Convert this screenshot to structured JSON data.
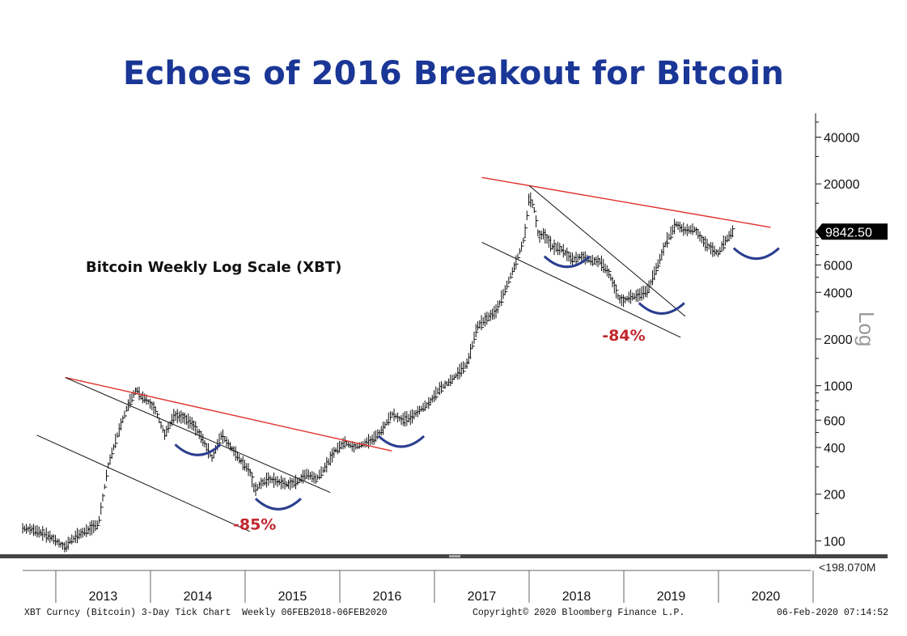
{
  "title": "Echoes of 2016 Breakout for Bitcoin",
  "subtitle": "Bitcoin Weekly Log Scale (XBT)",
  "axis_side_label": "Log",
  "last_price_label": "9842.50",
  "volume_label": "198.070M",
  "footer": {
    "left": "XBT Curncy (Bitcoin) 3-Day Tick Chart  Weekly 06FEB2018-06FEB2020",
    "center": "Copyright© 2020 Bloomberg Finance L.P.",
    "right": "06-Feb-2020 07:14:52"
  },
  "colors": {
    "title": "#1a3696",
    "resistance_line": "#e0302a",
    "channel_line": "#111111",
    "arc": "#2a3e8f",
    "annotation": "#c1272d"
  },
  "annotations": [
    {
      "text": "-85%",
      "x": 2015.05,
      "y": 118
    },
    {
      "text": "-84%",
      "x": 2018.95,
      "y": 1950
    }
  ],
  "chart_data": {
    "type": "line",
    "scale": "log",
    "title": "Echoes of 2016 Breakout for Bitcoin",
    "subtitle": "Bitcoin Weekly Log Scale (XBT)",
    "xlabel": "",
    "ylabel": "Log",
    "xlim": [
      2012.6,
      2020.95
    ],
    "ylim": [
      82,
      57000
    ],
    "x_tick_labels": [
      "2013",
      "2014",
      "2015",
      "2016",
      "2017",
      "2018",
      "2019",
      "2020"
    ],
    "y_ticks": [
      100,
      200,
      400,
      600,
      1000,
      2000,
      4000,
      6000,
      20000,
      40000
    ],
    "y_tick_labels": [
      "100",
      "200",
      "400",
      "600",
      "1000",
      "2000",
      "4000",
      "6000",
      "20000",
      "40000"
    ],
    "last_price": 9842.5,
    "series": [
      {
        "x": [
          2012.6,
          2012.7,
          2012.8,
          2012.9,
          2013.0,
          2013.05,
          2013.1,
          2013.2,
          2013.3,
          2013.4,
          2013.5,
          2013.6,
          2013.7,
          2013.8,
          2013.85,
          2013.9,
          2014.0,
          2014.1,
          2014.2,
          2014.3,
          2014.4,
          2014.5,
          2014.6,
          2014.7,
          2014.8,
          2014.9,
          2015.0,
          2015.05,
          2015.1,
          2015.2,
          2015.3,
          2015.4,
          2015.5,
          2015.6,
          2015.7,
          2015.8,
          2015.9,
          2016.0,
          2016.1,
          2016.2,
          2016.3,
          2016.4,
          2016.5,
          2016.6,
          2016.7,
          2016.8,
          2016.9,
          2017.0,
          2017.1,
          2017.2,
          2017.3,
          2017.4,
          2017.5,
          2017.6,
          2017.7,
          2017.8,
          2017.9,
          2017.95,
          2018.0,
          2018.05,
          2018.1,
          2018.2,
          2018.3,
          2018.4,
          2018.5,
          2018.6,
          2018.7,
          2018.8,
          2018.9,
          2018.95,
          2019.0,
          2019.1,
          2019.2,
          2019.3,
          2019.4,
          2019.5,
          2019.55,
          2019.6,
          2019.7,
          2019.8,
          2019.9,
          2019.95,
          2020.0,
          2020.1
        ],
        "y": [
          120,
          118,
          112,
          105,
          95,
          90,
          100,
          110,
          118,
          128,
          300,
          480,
          720,
          950,
          850,
          820,
          700,
          480,
          640,
          620,
          560,
          450,
          340,
          480,
          400,
          330,
          280,
          210,
          230,
          250,
          240,
          230,
          240,
          270,
          250,
          300,
          380,
          430,
          400,
          420,
          450,
          520,
          660,
          600,
          620,
          700,
          780,
          950,
          1050,
          1200,
          1400,
          2400,
          2700,
          3000,
          4200,
          6000,
          9000,
          16500,
          14000,
          9000,
          9500,
          7800,
          7500,
          6500,
          6800,
          6400,
          6300,
          5200,
          3600,
          3500,
          3700,
          3800,
          4100,
          5800,
          8500,
          11000,
          10400,
          10000,
          10200,
          8300,
          7400,
          7100,
          8200,
          9842.5
        ]
      }
    ],
    "trend_lines": [
      {
        "kind": "resistance",
        "color": "#e0302a",
        "from": [
          2013.05,
          1130
        ],
        "to": [
          2016.5,
          380
        ]
      },
      {
        "kind": "resistance",
        "color": "#e0302a",
        "from": [
          2017.45,
          22000
        ],
        "to": [
          2020.5,
          10500
        ]
      },
      {
        "kind": "channel",
        "color": "#111111",
        "from": [
          2013.05,
          1130
        ],
        "to": [
          2015.85,
          205
        ]
      },
      {
        "kind": "channel",
        "color": "#111111",
        "from": [
          2012.75,
          480
        ],
        "to": [
          2015.0,
          115
        ]
      },
      {
        "kind": "channel",
        "color": "#111111",
        "from": [
          2017.95,
          19500
        ],
        "to": [
          2019.6,
          2800
        ]
      },
      {
        "kind": "channel",
        "color": "#111111",
        "from": [
          2017.45,
          8400
        ],
        "to": [
          2019.55,
          2050
        ]
      }
    ],
    "arcs": [
      {
        "center": [
          2014.45,
          380
        ]
      },
      {
        "center": [
          2015.3,
          170
        ]
      },
      {
        "center": [
          2016.6,
          430
        ]
      },
      {
        "center": [
          2018.35,
          6200
        ]
      },
      {
        "center": [
          2019.35,
          3100
        ]
      },
      {
        "center": [
          2020.35,
          7000
        ]
      }
    ]
  }
}
